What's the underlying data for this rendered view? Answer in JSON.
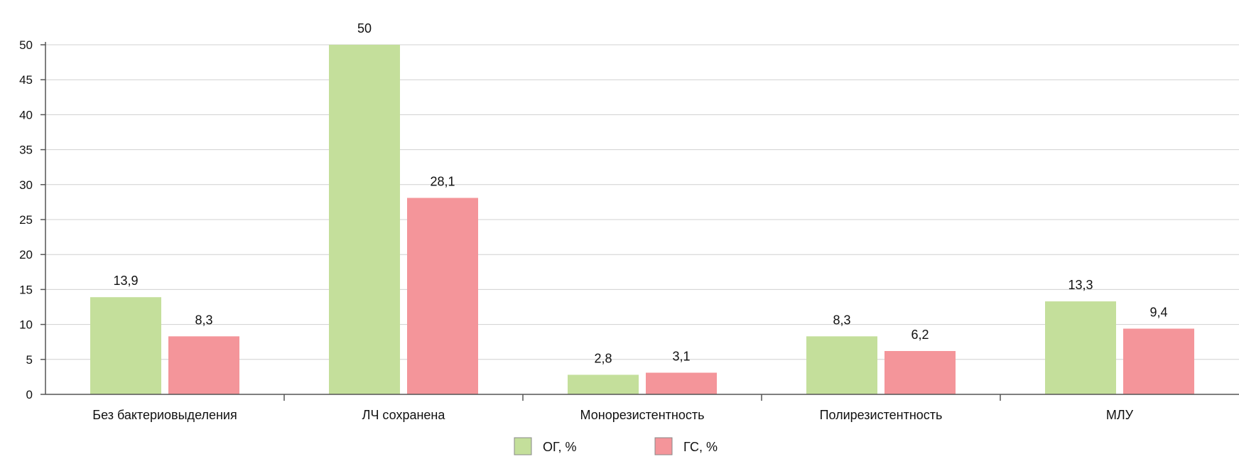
{
  "chart_data": {
    "type": "bar",
    "title": "",
    "xlabel": "",
    "ylabel": "",
    "categories": [
      "Без бактериовыделения",
      "ЛЧ сохранена",
      "Монорезистентность",
      "Полирезистентность",
      "МЛУ"
    ],
    "series": [
      {
        "name": "ОГ, %",
        "color": "#c4df9b",
        "values": [
          13.9,
          50,
          2.8,
          8.3,
          13.3
        ],
        "labels": [
          "13,9",
          "50",
          "2,8",
          "8,3",
          "13,3"
        ]
      },
      {
        "name": "ГС, %",
        "color": "#f4959a",
        "values": [
          8.3,
          28.1,
          3.1,
          6.2,
          9.4
        ],
        "labels": [
          "8,3",
          "28,1",
          "3,1",
          "6,2",
          "9,4"
        ]
      }
    ],
    "ylim": [
      0,
      50
    ],
    "yticks": [
      "0",
      "5",
      "10",
      "15",
      "20",
      "25",
      "30",
      "35",
      "40",
      "45",
      "50"
    ],
    "grid": true,
    "legend_position": "bottom"
  }
}
